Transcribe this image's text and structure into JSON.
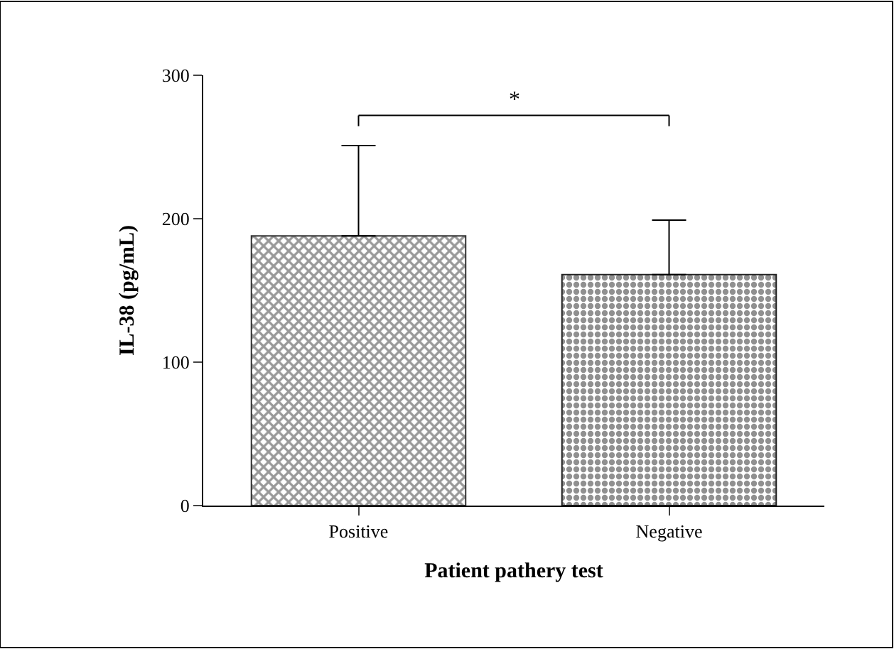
{
  "chart_data": {
    "type": "bar",
    "xlabel": "Patient pathery test",
    "ylabel": "IL-38 (pg/mL)",
    "categories": [
      "Positive",
      "Negative"
    ],
    "values": [
      188,
      161
    ],
    "colors": [
      "#333333",
      "#222222"
    ],
    "errors": [
      [
        188,
        251
      ],
      [
        161,
        199
      ]
    ],
    "ylim": [
      0,
      300
    ],
    "yticks": [
      0,
      100,
      200,
      300
    ],
    "annotations": [
      "*"
    ]
  }
}
